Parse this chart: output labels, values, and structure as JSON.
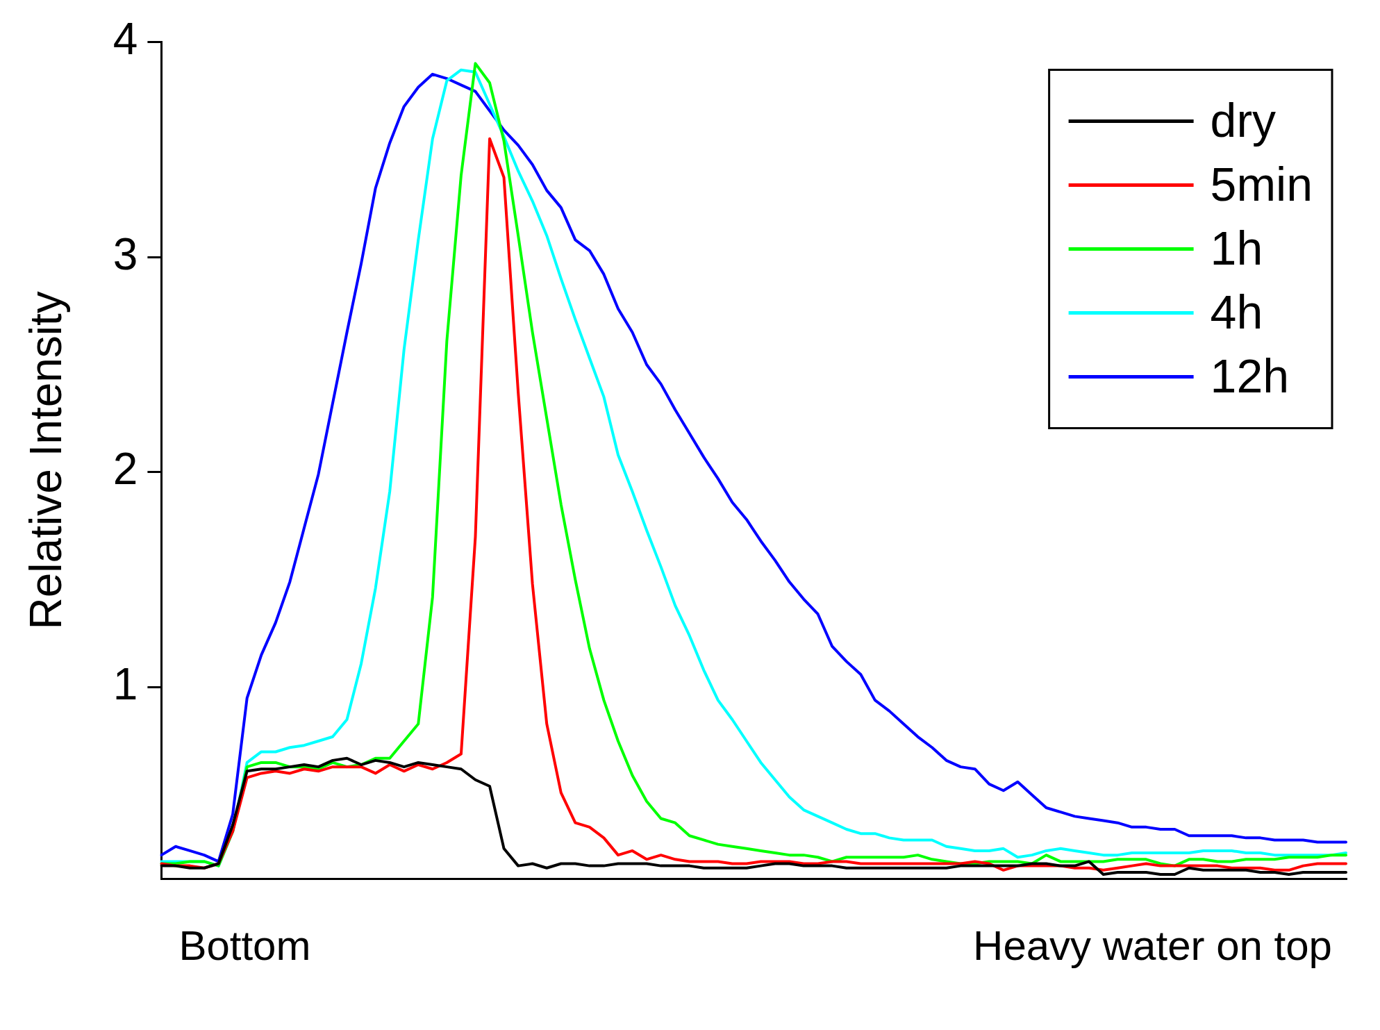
{
  "chart_data": {
    "type": "line",
    "ylabel": "Relative Intensity",
    "annotations": [
      "Bottom",
      "Heavy water on top"
    ],
    "categories": [
      null,
      null,
      null,
      null,
      null,
      null,
      null,
      null,
      null,
      null,
      null,
      null,
      null,
      null,
      null,
      null,
      null,
      null,
      null,
      null,
      null,
      null,
      null,
      null,
      null,
      null,
      null,
      null,
      null,
      null,
      null,
      null,
      null,
      null,
      null,
      null,
      null,
      null,
      null,
      null,
      null,
      null,
      null,
      null,
      null,
      null,
      null,
      null,
      null,
      null,
      null,
      null,
      null,
      null,
      null,
      null,
      null,
      null,
      null,
      null,
      null,
      null,
      null,
      null,
      null,
      null,
      null,
      null,
      null,
      null,
      null,
      null,
      null,
      null,
      null,
      null,
      null,
      null,
      null,
      null,
      null,
      null,
      null,
      null
    ],
    "ylim": [
      0.11,
      4
    ],
    "yticks": [
      1,
      2,
      3,
      4
    ],
    "legend": "top right",
    "series": [
      {
        "name": "dry",
        "color": "#000000",
        "values": [
          0.17,
          0.17,
          0.16,
          0.16,
          0.18,
          0.36,
          0.61,
          0.62,
          0.62,
          0.63,
          0.64,
          0.63,
          0.66,
          0.67,
          0.64,
          0.66,
          0.65,
          0.63,
          0.65,
          0.64,
          0.63,
          0.62,
          0.57,
          0.54,
          0.25,
          0.17,
          0.18,
          0.16,
          0.18,
          0.18,
          0.17,
          0.17,
          0.18,
          0.18,
          0.18,
          0.17,
          0.17,
          0.17,
          0.16,
          0.16,
          0.16,
          0.16,
          0.17,
          0.18,
          0.18,
          0.17,
          0.17,
          0.17,
          0.16,
          0.16,
          0.16,
          0.16,
          0.16,
          0.16,
          0.16,
          0.16,
          0.17,
          0.17,
          0.17,
          0.17,
          0.17,
          0.18,
          0.18,
          0.17,
          0.17,
          0.19,
          0.13,
          0.14,
          0.14,
          0.14,
          0.13,
          0.13,
          0.16,
          0.15,
          0.15,
          0.15,
          0.15,
          0.14,
          0.14,
          0.13,
          0.14,
          0.14,
          0.14,
          0.14
        ]
      },
      {
        "name": "5min",
        "color": "#ff0000",
        "values": [
          0.18,
          0.17,
          0.17,
          0.16,
          0.18,
          0.33,
          0.58,
          0.6,
          0.61,
          0.6,
          0.62,
          0.61,
          0.63,
          0.63,
          0.63,
          0.6,
          0.64,
          0.61,
          0.64,
          0.62,
          0.65,
          0.69,
          1.7,
          3.55,
          3.37,
          2.37,
          1.48,
          0.83,
          0.51,
          0.37,
          0.35,
          0.3,
          0.22,
          0.24,
          0.2,
          0.22,
          0.2,
          0.19,
          0.19,
          0.19,
          0.18,
          0.18,
          0.19,
          0.19,
          0.19,
          0.18,
          0.18,
          0.19,
          0.19,
          0.18,
          0.18,
          0.18,
          0.18,
          0.18,
          0.18,
          0.18,
          0.18,
          0.19,
          0.18,
          0.15,
          0.17,
          0.17,
          0.17,
          0.17,
          0.16,
          0.16,
          0.15,
          0.16,
          0.17,
          0.18,
          0.17,
          0.17,
          0.17,
          0.17,
          0.17,
          0.16,
          0.16,
          0.16,
          0.15,
          0.15,
          0.17,
          0.18,
          0.18,
          0.18
        ]
      },
      {
        "name": "1h",
        "color": "#00ff00",
        "values": [
          0.18,
          0.18,
          0.19,
          0.19,
          0.17,
          0.33,
          0.63,
          0.65,
          0.65,
          0.63,
          0.63,
          0.62,
          0.65,
          0.63,
          0.64,
          0.67,
          0.67,
          0.75,
          0.83,
          1.42,
          2.61,
          3.38,
          3.9,
          3.81,
          3.54,
          3.1,
          2.65,
          2.25,
          1.85,
          1.5,
          1.18,
          0.94,
          0.75,
          0.59,
          0.47,
          0.39,
          0.37,
          0.31,
          0.29,
          0.27,
          0.26,
          0.25,
          0.24,
          0.23,
          0.22,
          0.22,
          0.21,
          0.19,
          0.21,
          0.21,
          0.21,
          0.21,
          0.21,
          0.22,
          0.2,
          0.19,
          0.18,
          0.18,
          0.19,
          0.19,
          0.19,
          0.18,
          0.22,
          0.19,
          0.19,
          0.19,
          0.19,
          0.2,
          0.2,
          0.2,
          0.18,
          0.17,
          0.2,
          0.2,
          0.19,
          0.19,
          0.2,
          0.2,
          0.2,
          0.21,
          0.21,
          0.21,
          0.22,
          0.22
        ]
      },
      {
        "name": "4h",
        "color": "#00ffff",
        "values": [
          0.19,
          0.19,
          0.19,
          0.19,
          0.17,
          0.33,
          0.65,
          0.7,
          0.7,
          0.72,
          0.73,
          0.75,
          0.77,
          0.85,
          1.11,
          1.46,
          1.91,
          2.57,
          3.08,
          3.55,
          3.82,
          3.87,
          3.86,
          3.71,
          3.56,
          3.4,
          3.26,
          3.1,
          2.9,
          2.71,
          2.53,
          2.35,
          2.08,
          1.91,
          1.73,
          1.56,
          1.38,
          1.24,
          1.08,
          0.94,
          0.85,
          0.75,
          0.65,
          0.57,
          0.49,
          0.43,
          0.4,
          0.37,
          0.34,
          0.32,
          0.32,
          0.3,
          0.29,
          0.29,
          0.29,
          0.26,
          0.25,
          0.24,
          0.24,
          0.25,
          0.21,
          0.22,
          0.24,
          0.25,
          0.24,
          0.23,
          0.22,
          0.22,
          0.23,
          0.23,
          0.23,
          0.23,
          0.23,
          0.24,
          0.24,
          0.24,
          0.23,
          0.23,
          0.22,
          0.22,
          0.22,
          0.22,
          0.22,
          0.23
        ]
      },
      {
        "name": "12h",
        "color": "#0000ff",
        "values": [
          0.22,
          0.26,
          0.24,
          0.22,
          0.19,
          0.41,
          0.95,
          1.15,
          1.3,
          1.49,
          1.74,
          1.99,
          2.32,
          2.65,
          2.97,
          3.32,
          3.53,
          3.7,
          3.79,
          3.85,
          3.83,
          3.8,
          3.77,
          3.68,
          3.59,
          3.52,
          3.43,
          3.31,
          3.23,
          3.08,
          3.03,
          2.92,
          2.76,
          2.65,
          2.5,
          2.41,
          2.29,
          2.18,
          2.07,
          1.97,
          1.86,
          1.78,
          1.68,
          1.59,
          1.49,
          1.41,
          1.34,
          1.19,
          1.12,
          1.06,
          0.94,
          0.89,
          0.83,
          0.77,
          0.72,
          0.66,
          0.63,
          0.62,
          0.55,
          0.52,
          0.56,
          0.5,
          0.44,
          0.42,
          0.4,
          0.39,
          0.38,
          0.37,
          0.35,
          0.35,
          0.34,
          0.34,
          0.31,
          0.31,
          0.31,
          0.31,
          0.3,
          0.3,
          0.29,
          0.29,
          0.29,
          0.28,
          0.28,
          0.28
        ]
      }
    ]
  }
}
